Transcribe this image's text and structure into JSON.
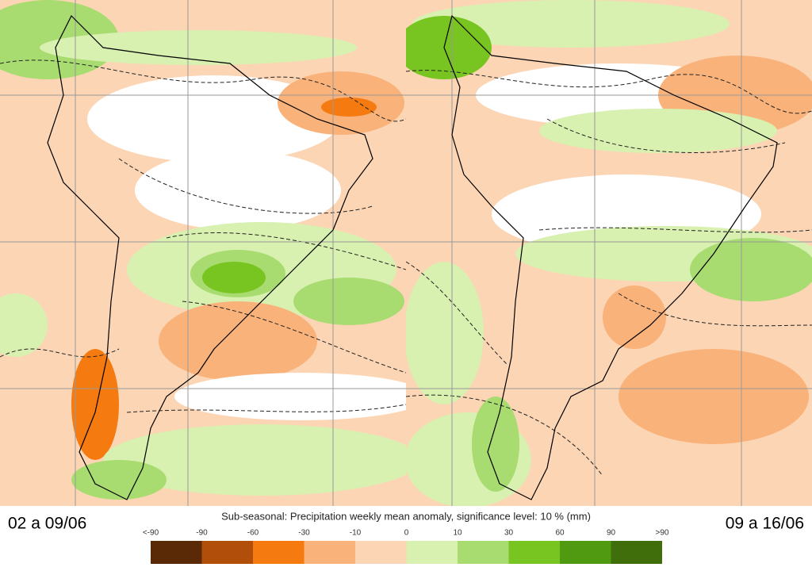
{
  "panels": [
    {
      "label": "02 a 09/06"
    },
    {
      "label": "09 a 16/06"
    }
  ],
  "colorbar": {
    "title": "Sub-seasonal: Precipitation weekly mean anomaly, significance level: 10 % (mm)",
    "labels": [
      "<-90",
      "-90",
      "-60",
      "-30",
      "-10",
      "0",
      "10",
      "30",
      "60",
      "90",
      ">90"
    ],
    "colors": [
      "#5a2a06",
      "#b04e0a",
      "#f57a10",
      "#f9b27a",
      "#fcd5b4",
      "#d8f0b0",
      "#a8dc70",
      "#78c420",
      "#4f9a10",
      "#3f6e0a"
    ]
  }
}
